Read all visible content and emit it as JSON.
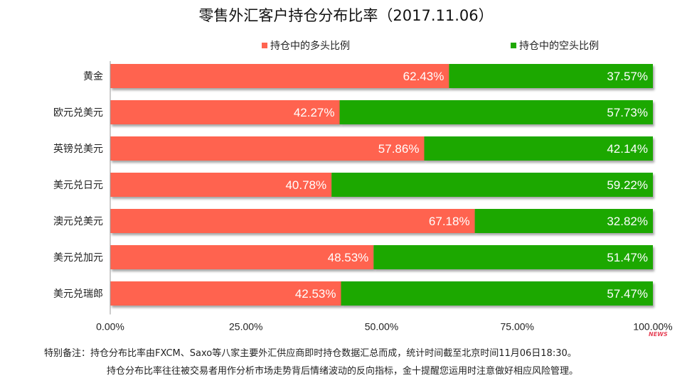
{
  "chart_data": {
    "type": "bar",
    "stacked": true,
    "orientation": "horizontal",
    "title": "零售外汇客户持仓分布比率（2017.11.06）",
    "categories": [
      "黄金",
      "欧元兑美元",
      "英镑兑美元",
      "美元兑日元",
      "澳元兑美元",
      "美元兑加元",
      "美元兑瑞郎"
    ],
    "series": [
      {
        "name": "持仓中的多头比例",
        "color": "#ff6450",
        "values": [
          62.43,
          42.27,
          57.86,
          40.78,
          67.18,
          48.53,
          42.53
        ],
        "labels": [
          "62.43%",
          "42.27%",
          "57.86%",
          "40.78%",
          "67.18%",
          "48.53%",
          "42.53%"
        ]
      },
      {
        "name": "持仓中的空头比例",
        "color": "#1ea800",
        "values": [
          37.57,
          57.73,
          42.14,
          59.22,
          32.82,
          51.47,
          57.47
        ],
        "labels": [
          "37.57%",
          "57.73%",
          "42.14%",
          "59.22%",
          "32.82%",
          "51.47%",
          "57.47%"
        ]
      }
    ],
    "xlim": [
      0,
      100
    ],
    "xticks": [
      "0.00%",
      "25.00%",
      "50.00%",
      "75.00%",
      "100.00%"
    ],
    "legend_position": "top",
    "grid": false
  },
  "notes": {
    "line1": "特别备注：持仓分布比率由FXCM、Saxo等八家主要外汇供应商即时持仓数据汇总而成，统计时间截至北京时间11月06日18:30。",
    "line2": "持仓分布比率往往被交易者用作分析市场走势背后情绪波动的反向指标，金十提醒您运用时注意做好相应风险管理。"
  },
  "watermark": "NEWS"
}
